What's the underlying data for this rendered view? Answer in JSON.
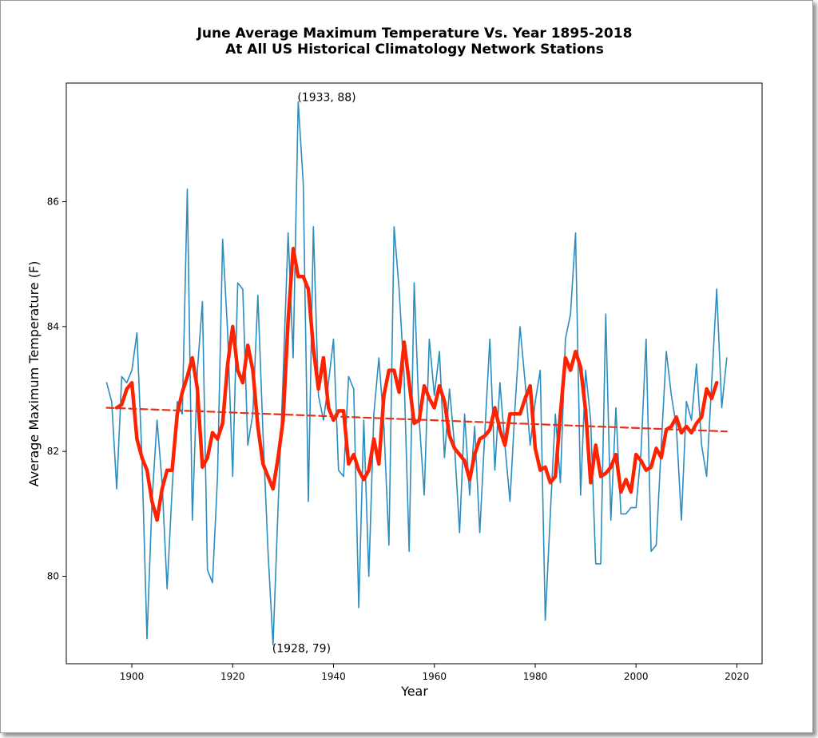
{
  "chart_data": {
    "type": "line",
    "title": "June Average Maximum Temperature Vs. Year 1895-2018",
    "subtitle": "At All US Historical Climatology Network Stations",
    "xlabel": "Year",
    "ylabel": "Average Maximum Temperature (F)",
    "xlim": [
      1887,
      2025
    ],
    "ylim": [
      78.6,
      87.9
    ],
    "xticks": [
      1900,
      1920,
      1940,
      1960,
      1980,
      2000,
      2020
    ],
    "yticks": [
      80,
      82,
      84,
      86
    ],
    "grid": false,
    "colors": {
      "annual": "#2b8cbe",
      "smoothed": "#ff2200",
      "trend": "#e53218"
    },
    "series": [
      {
        "key": "annual",
        "x": [
          1895,
          1896,
          1897,
          1898,
          1899,
          1900,
          1901,
          1902,
          1903,
          1904,
          1905,
          1906,
          1907,
          1908,
          1909,
          1910,
          1911,
          1912,
          1913,
          1914,
          1915,
          1916,
          1917,
          1918,
          1919,
          1920,
          1921,
          1922,
          1923,
          1924,
          1925,
          1926,
          1927,
          1928,
          1929,
          1930,
          1931,
          1932,
          1933,
          1934,
          1935,
          1936,
          1937,
          1938,
          1939,
          1940,
          1941,
          1942,
          1943,
          1944,
          1945,
          1946,
          1947,
          1948,
          1949,
          1950,
          1951,
          1952,
          1953,
          1954,
          1955,
          1956,
          1957,
          1958,
          1959,
          1960,
          1961,
          1962,
          1963,
          1964,
          1965,
          1966,
          1967,
          1968,
          1969,
          1970,
          1971,
          1972,
          1973,
          1974,
          1975,
          1976,
          1977,
          1978,
          1979,
          1980,
          1981,
          1982,
          1983,
          1984,
          1985,
          1986,
          1987,
          1988,
          1989,
          1990,
          1991,
          1992,
          1993,
          1994,
          1995,
          1996,
          1997,
          1998,
          1999,
          2000,
          2001,
          2002,
          2003,
          2004,
          2005,
          2006,
          2007,
          2008,
          2009,
          2010,
          2011,
          2012,
          2013,
          2014,
          2015,
          2016,
          2017,
          2018
        ],
        "values": [
          83.1,
          82.8,
          81.4,
          83.2,
          83.1,
          83.3,
          83.9,
          81.9,
          79.0,
          81.2,
          82.5,
          81.5,
          79.8,
          81.4,
          82.8,
          82.6,
          86.2,
          80.9,
          83.3,
          84.4,
          80.1,
          79.9,
          81.6,
          85.4,
          83.9,
          81.6,
          84.7,
          84.6,
          82.1,
          82.6,
          84.5,
          82.3,
          80.4,
          78.9,
          81.1,
          83.2,
          85.5,
          83.5,
          87.6,
          86.3,
          81.2,
          85.6,
          82.9,
          82.5,
          83.1,
          83.8,
          81.7,
          81.6,
          83.2,
          83.0,
          79.5,
          82.5,
          80.0,
          82.6,
          83.5,
          82.4,
          80.5,
          85.6,
          84.6,
          83.2,
          80.4,
          84.7,
          82.5,
          81.3,
          83.8,
          82.9,
          83.6,
          81.9,
          83.0,
          82.1,
          80.7,
          82.6,
          81.3,
          82.4,
          80.7,
          82.3,
          83.8,
          81.7,
          83.1,
          82.1,
          81.2,
          82.7,
          84.0,
          83.1,
          82.1,
          82.8,
          83.3,
          79.3,
          81.0,
          82.6,
          81.5,
          83.8,
          84.2,
          85.5,
          81.3,
          83.3,
          82.5,
          80.2,
          80.2,
          84.2,
          80.9,
          82.7,
          81.0,
          81.0,
          81.1,
          81.1,
          82.0,
          83.8,
          80.4,
          80.5,
          82.1,
          83.6,
          82.9,
          82.4,
          80.9,
          82.8,
          82.5,
          83.4,
          82.1,
          81.6,
          83.1,
          84.6,
          82.7,
          83.5
        ]
      },
      {
        "key": "smoothed",
        "x": [
          1897,
          1898,
          1899,
          1900,
          1901,
          1902,
          1903,
          1904,
          1905,
          1906,
          1907,
          1908,
          1909,
          1910,
          1911,
          1912,
          1913,
          1914,
          1915,
          1916,
          1917,
          1918,
          1919,
          1920,
          1921,
          1922,
          1923,
          1924,
          1925,
          1926,
          1927,
          1928,
          1929,
          1930,
          1931,
          1932,
          1933,
          1934,
          1935,
          1936,
          1937,
          1938,
          1939,
          1940,
          1941,
          1942,
          1943,
          1944,
          1945,
          1946,
          1947,
          1948,
          1949,
          1950,
          1951,
          1952,
          1953,
          1954,
          1955,
          1956,
          1957,
          1958,
          1959,
          1960,
          1961,
          1962,
          1963,
          1964,
          1965,
          1966,
          1967,
          1968,
          1969,
          1970,
          1971,
          1972,
          1973,
          1974,
          1975,
          1976,
          1977,
          1978,
          1979,
          1980,
          1981,
          1982,
          1983,
          1984,
          1985,
          1986,
          1987,
          1988,
          1989,
          1990,
          1991,
          1992,
          1993,
          1994,
          1995,
          1996,
          1997,
          1998,
          1999,
          2000,
          2001,
          2002,
          2003,
          2004,
          2005,
          2006,
          2007,
          2008,
          2009,
          2010,
          2011,
          2012,
          2013,
          2014,
          2015,
          2016
        ],
        "values": [
          82.7,
          82.75,
          83.0,
          83.1,
          82.2,
          81.9,
          81.7,
          81.2,
          80.9,
          81.4,
          81.7,
          81.7,
          82.6,
          82.95,
          83.2,
          83.5,
          83.0,
          81.75,
          81.9,
          82.3,
          82.2,
          82.45,
          83.4,
          84.0,
          83.3,
          83.1,
          83.7,
          83.3,
          82.4,
          81.8,
          81.6,
          81.4,
          81.9,
          82.5,
          84.1,
          85.25,
          84.8,
          84.8,
          84.6,
          83.65,
          83.0,
          83.5,
          82.7,
          82.5,
          82.65,
          82.65,
          81.8,
          81.95,
          81.7,
          81.55,
          81.7,
          82.2,
          81.8,
          82.9,
          83.3,
          83.3,
          82.95,
          83.75,
          83.1,
          82.45,
          82.5,
          83.05,
          82.85,
          82.7,
          83.05,
          82.8,
          82.25,
          82.05,
          81.95,
          81.85,
          81.55,
          81.95,
          82.2,
          82.25,
          82.35,
          82.7,
          82.35,
          82.1,
          82.6,
          82.6,
          82.6,
          82.85,
          83.05,
          82.05,
          81.7,
          81.75,
          81.5,
          81.6,
          82.6,
          83.5,
          83.3,
          83.6,
          83.35,
          82.65,
          81.5,
          82.1,
          81.6,
          81.65,
          81.75,
          81.95,
          81.35,
          81.55,
          81.35,
          81.95,
          81.85,
          81.7,
          81.75,
          82.05,
          81.9,
          82.35,
          82.4,
          82.55,
          82.3,
          82.4,
          82.3,
          82.45,
          82.55,
          83.0,
          82.85,
          83.1
        ]
      },
      {
        "key": "trend",
        "x": [
          1895,
          2018
        ],
        "values": [
          82.7,
          82.32
        ]
      }
    ],
    "annotations": [
      {
        "text": "(1933, 88)",
        "x": 1933,
        "y": 87.6
      },
      {
        "text": "(1928, 79)",
        "x": 1928,
        "y": 78.9
      }
    ]
  }
}
